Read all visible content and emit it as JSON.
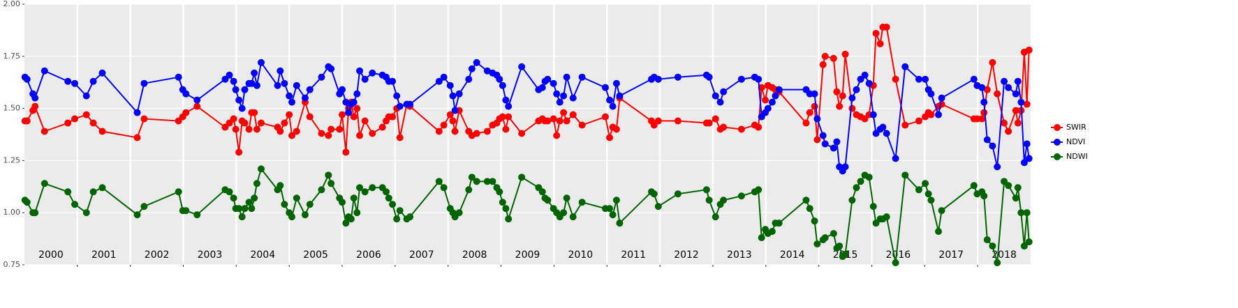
{
  "chart_data": {
    "type": "line",
    "x": [
      2000.01,
      2000.05,
      2000.16,
      2000.2,
      2000.38,
      2000.82,
      2000.95,
      2001.17,
      2001.3,
      2001.47,
      2002.13,
      2002.26,
      2002.91,
      2002.99,
      2003.05,
      2003.26,
      2003.79,
      2003.87,
      2003.95,
      2003.99,
      2004.05,
      2004.11,
      2004.16,
      2004.24,
      2004.29,
      2004.34,
      2004.39,
      2004.47,
      2004.78,
      2004.83,
      2004.91,
      2005.0,
      2005.05,
      2005.14,
      2005.3,
      2005.39,
      2005.61,
      2005.74,
      2005.79,
      2005.95,
      2006.0,
      2006.07,
      2006.12,
      2006.17,
      2006.22,
      2006.28,
      2006.33,
      2006.43,
      2006.57,
      2006.76,
      2006.83,
      2006.88,
      2006.95,
      2007.03,
      2007.09,
      2007.22,
      2007.28,
      2007.83,
      2007.92,
      2008.04,
      2008.09,
      2008.13,
      2008.21,
      2008.39,
      2008.45,
      2008.54,
      2008.74,
      2008.84,
      2008.92,
      2008.97,
      2009.03,
      2009.09,
      2009.14,
      2009.39,
      2009.71,
      2009.78,
      2009.83,
      2009.88,
      2009.99,
      2010.05,
      2010.11,
      2010.18,
      2010.24,
      2010.36,
      2010.53,
      2010.97,
      2011.05,
      2011.11,
      2011.18,
      2011.24,
      2011.84,
      2011.89,
      2011.97,
      2012.34,
      2012.88,
      2012.93,
      2013.05,
      2013.14,
      2013.2,
      2013.54,
      2013.79,
      2013.86,
      2013.92,
      2013.99,
      2014.04,
      2014.12,
      2014.18,
      2014.25,
      2014.76,
      2014.83,
      2014.92,
      2014.97,
      2015.08,
      2015.12,
      2015.28,
      2015.34,
      2015.39,
      2015.45,
      2015.5,
      2015.63,
      2015.71,
      2015.79,
      2015.87,
      2015.95,
      2016.03,
      2016.08,
      2016.16,
      2016.21,
      2016.28,
      2016.45,
      2016.63,
      2016.89,
      2017.01,
      2017.07,
      2017.12,
      2017.26,
      2017.32,
      2017.93,
      2017.99,
      2018.08,
      2018.12,
      2018.18,
      2018.28,
      2018.37,
      2018.5,
      2018.58,
      2018.72,
      2018.76,
      2018.82,
      2018.88,
      2018.93,
      2018.97
    ],
    "series": [
      {
        "name": "SWIR",
        "color": "#ff0000",
        "values": [
          1.44,
          1.44,
          1.49,
          1.51,
          1.39,
          1.43,
          1.45,
          1.47,
          1.43,
          1.39,
          1.36,
          1.45,
          1.44,
          1.46,
          1.48,
          1.51,
          1.41,
          1.43,
          1.45,
          1.4,
          1.29,
          1.44,
          1.43,
          1.4,
          1.48,
          1.48,
          1.4,
          1.43,
          1.41,
          1.39,
          1.43,
          1.47,
          1.37,
          1.39,
          1.53,
          1.46,
          1.38,
          1.37,
          1.4,
          1.4,
          1.47,
          1.29,
          1.5,
          1.53,
          1.46,
          1.5,
          1.37,
          1.44,
          1.38,
          1.41,
          1.44,
          1.46,
          1.46,
          1.5,
          1.36,
          1.52,
          1.51,
          1.39,
          1.42,
          1.47,
          1.44,
          1.39,
          1.49,
          1.39,
          1.37,
          1.38,
          1.39,
          1.42,
          1.43,
          1.45,
          1.46,
          1.4,
          1.46,
          1.38,
          1.44,
          1.45,
          1.44,
          1.44,
          1.45,
          1.37,
          1.44,
          1.48,
          1.44,
          1.47,
          1.42,
          1.46,
          1.36,
          1.41,
          1.4,
          1.55,
          1.44,
          1.42,
          1.44,
          1.44,
          1.43,
          1.43,
          1.45,
          1.4,
          1.41,
          1.4,
          1.42,
          1.41,
          1.6,
          1.54,
          1.61,
          1.6,
          1.59,
          1.58,
          1.43,
          1.48,
          1.51,
          1.35,
          1.71,
          1.75,
          1.74,
          1.58,
          1.51,
          1.56,
          1.76,
          1.5,
          1.47,
          1.46,
          1.45,
          1.47,
          1.61,
          1.86,
          1.81,
          1.89,
          1.89,
          1.64,
          1.42,
          1.44,
          1.46,
          1.48,
          1.47,
          1.51,
          1.52,
          1.45,
          1.45,
          1.45,
          1.48,
          1.59,
          1.72,
          1.57,
          1.43,
          1.39,
          1.49,
          1.43,
          1.49,
          1.77,
          1.52,
          1.78
        ]
      },
      {
        "name": "NDVI",
        "color": "#0000ff",
        "values": [
          1.65,
          1.64,
          1.57,
          1.55,
          1.68,
          1.63,
          1.62,
          1.56,
          1.63,
          1.67,
          1.48,
          1.62,
          1.65,
          1.59,
          1.57,
          1.54,
          1.64,
          1.66,
          1.63,
          1.59,
          1.54,
          1.5,
          1.59,
          1.62,
          1.62,
          1.67,
          1.61,
          1.72,
          1.61,
          1.68,
          1.62,
          1.56,
          1.53,
          1.61,
          1.55,
          1.59,
          1.65,
          1.7,
          1.69,
          1.57,
          1.59,
          1.53,
          1.48,
          1.52,
          1.53,
          1.57,
          1.68,
          1.64,
          1.67,
          1.66,
          1.65,
          1.63,
          1.63,
          1.56,
          1.51,
          1.52,
          1.52,
          1.63,
          1.65,
          1.61,
          1.56,
          1.49,
          1.57,
          1.64,
          1.69,
          1.72,
          1.68,
          1.67,
          1.66,
          1.64,
          1.61,
          1.54,
          1.51,
          1.7,
          1.59,
          1.6,
          1.63,
          1.64,
          1.62,
          1.57,
          1.53,
          1.56,
          1.65,
          1.55,
          1.65,
          1.6,
          1.54,
          1.51,
          1.62,
          1.56,
          1.64,
          1.65,
          1.64,
          1.65,
          1.66,
          1.65,
          1.56,
          1.53,
          1.58,
          1.64,
          1.65,
          1.64,
          1.46,
          1.48,
          1.5,
          1.53,
          1.56,
          1.59,
          1.59,
          1.57,
          1.57,
          1.45,
          1.37,
          1.33,
          1.31,
          1.34,
          1.22,
          1.2,
          1.22,
          1.55,
          1.59,
          1.64,
          1.66,
          1.62,
          1.47,
          1.38,
          1.4,
          1.41,
          1.38,
          1.26,
          1.7,
          1.64,
          1.64,
          1.59,
          1.57,
          1.47,
          1.55,
          1.64,
          1.61,
          1.6,
          1.53,
          1.35,
          1.32,
          1.22,
          1.63,
          1.6,
          1.57,
          1.63,
          1.53,
          1.24,
          1.33,
          1.26
        ]
      },
      {
        "name": "NDWI",
        "color": "#006400",
        "values": [
          1.06,
          1.05,
          1.0,
          1.0,
          1.14,
          1.1,
          1.04,
          1.0,
          1.1,
          1.12,
          0.99,
          1.03,
          1.1,
          1.01,
          1.01,
          0.99,
          1.11,
          1.1,
          1.07,
          1.02,
          1.02,
          0.98,
          1.02,
          1.05,
          1.02,
          1.07,
          1.14,
          1.21,
          1.11,
          1.13,
          1.04,
          1.0,
          0.98,
          1.07,
          0.99,
          1.04,
          1.11,
          1.18,
          1.14,
          1.07,
          1.05,
          0.95,
          0.98,
          0.97,
          1.07,
          1.0,
          1.12,
          1.1,
          1.12,
          1.12,
          1.1,
          1.07,
          1.04,
          0.97,
          1.01,
          0.97,
          0.98,
          1.15,
          1.12,
          1.02,
          1.0,
          0.98,
          1.0,
          1.11,
          1.17,
          1.15,
          1.15,
          1.15,
          1.12,
          1.1,
          1.05,
          1.02,
          0.97,
          1.17,
          1.12,
          1.1,
          1.07,
          1.06,
          1.02,
          1.0,
          0.98,
          1.0,
          1.07,
          0.98,
          1.05,
          1.02,
          1.02,
          0.99,
          1.06,
          0.95,
          1.1,
          1.09,
          1.03,
          1.09,
          1.11,
          1.06,
          0.98,
          1.04,
          1.06,
          1.08,
          1.1,
          1.11,
          0.88,
          0.92,
          0.9,
          0.91,
          0.95,
          0.95,
          1.06,
          1.02,
          0.96,
          0.85,
          0.87,
          0.88,
          0.9,
          0.83,
          0.84,
          0.79,
          0.8,
          1.06,
          1.12,
          1.15,
          1.18,
          1.17,
          1.03,
          0.95,
          0.97,
          0.97,
          0.98,
          0.76,
          1.18,
          1.11,
          1.14,
          1.09,
          1.06,
          0.91,
          1.01,
          1.13,
          1.09,
          1.1,
          1.08,
          0.87,
          0.84,
          0.76,
          1.15,
          1.13,
          1.07,
          1.12,
          1.0,
          0.84,
          1.0,
          0.86
        ]
      }
    ],
    "xlim": [
      2000,
      2019
    ],
    "xticks": [
      2001,
      2002,
      2003,
      2004,
      2005,
      2006,
      2007,
      2008,
      2009,
      2010,
      2011,
      2012,
      2013,
      2014,
      2015,
      2016,
      2017,
      2018
    ],
    "ylim": [
      0.75,
      2.0
    ],
    "yticks": [
      0.75,
      {
        "value": 1.0,
        "label": "1.00"
      },
      1.25,
      {
        "value": 1.5,
        "label": "1.50"
      },
      1.75,
      {
        "value": 2.0,
        "label": "2.00"
      }
    ],
    "annotations": [
      {
        "x": 2000.5,
        "label": "2000"
      },
      {
        "x": 2001.5,
        "label": "2001"
      },
      {
        "x": 2002.5,
        "label": "2002"
      },
      {
        "x": 2003.5,
        "label": "2003"
      },
      {
        "x": 2004.5,
        "label": "2004"
      },
      {
        "x": 2005.5,
        "label": "2005"
      },
      {
        "x": 2006.5,
        "label": "2006"
      },
      {
        "x": 2007.5,
        "label": "2007"
      },
      {
        "x": 2008.5,
        "label": "2008"
      },
      {
        "x": 2009.5,
        "label": "2009"
      },
      {
        "x": 2010.5,
        "label": "2010"
      },
      {
        "x": 2011.5,
        "label": "2011"
      },
      {
        "x": 2012.5,
        "label": "2012"
      },
      {
        "x": 2013.5,
        "label": "2013"
      },
      {
        "x": 2014.5,
        "label": "2014"
      },
      {
        "x": 2015.5,
        "label": "2015"
      },
      {
        "x": 2016.5,
        "label": "2016"
      },
      {
        "x": 2017.5,
        "label": "2017"
      },
      {
        "x": 2018.5,
        "label": "2018"
      }
    ],
    "grid": true
  }
}
